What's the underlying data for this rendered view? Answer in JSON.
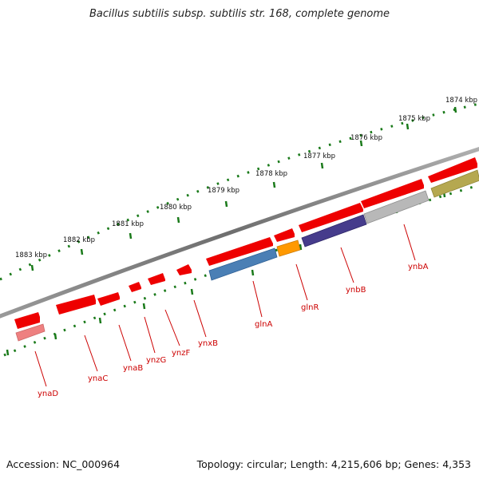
{
  "title": "Bacillus subtilis subsp. subtilis str. 168, complete genome",
  "footer": {
    "accession": "Accession: NC_000964",
    "topology": "Topology: circular; Length: 4,215,606 bp; Genes: 4,353"
  },
  "ruler": {
    "labels": [
      "1874 kbp",
      "1875 kbp",
      "1876 kbp",
      "1877 kbp",
      "1878 kbp",
      "1879 kbp",
      "1880 kbp",
      "1881 kbp",
      "1882 kbp",
      "1883 kbp"
    ]
  },
  "genes": [
    {
      "name": "ynaD",
      "strand": "+",
      "color": "#ee8080"
    },
    {
      "name": "ynaC",
      "strand": "-",
      "color": "#ee0000"
    },
    {
      "name": "ynaB",
      "strand": "-",
      "color": "#ee0000"
    },
    {
      "name": "ynzG",
      "strand": "-",
      "color": "#ee0000"
    },
    {
      "name": "ynzF",
      "strand": "-",
      "color": "#ee0000"
    },
    {
      "name": "ynxB",
      "strand": "-",
      "color": "#ee0000"
    },
    {
      "name": "glnA",
      "strand": "+",
      "color": "#4a7fb5"
    },
    {
      "name": "glnR",
      "strand": "+",
      "color": "#ff9900"
    },
    {
      "name": "ynbB",
      "strand": "+",
      "color": "#463c8c"
    },
    {
      "name": "ynbA",
      "strand": "+",
      "color": "#b8b8b8"
    }
  ],
  "colors": {
    "backbone": "#808080",
    "ruler_ticks": "#1a7a1a",
    "gene_label": "#cc0000",
    "forward_red": "#ee0000",
    "olive_gene": "#b5a850"
  }
}
